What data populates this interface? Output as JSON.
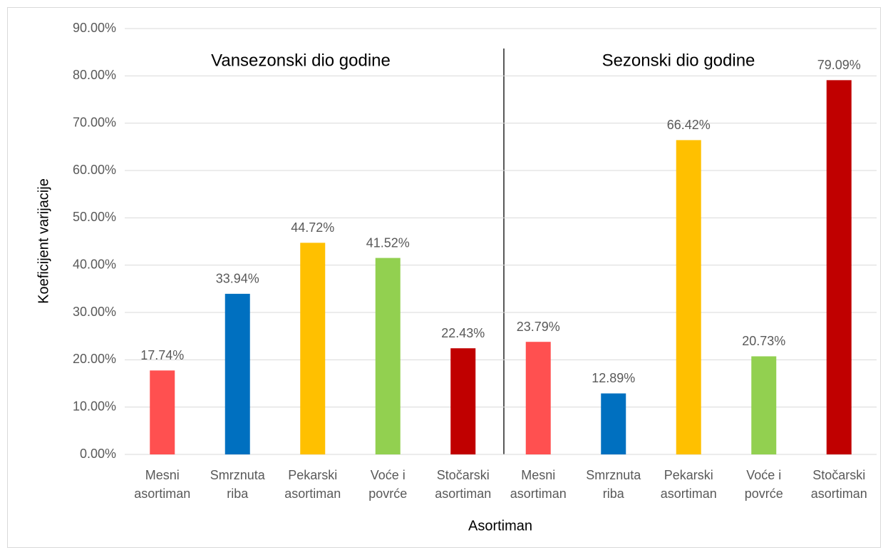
{
  "chart_data": {
    "type": "bar",
    "x_label": "Asortiman",
    "y_label": "Koeficijent varijacije",
    "annotations": [
      "Vansezonski dio godine",
      "Sezonski dio godine"
    ],
    "categories": [
      [
        "Mesni",
        "asortiman"
      ],
      [
        "Smrznuta",
        "riba"
      ],
      [
        "Pekarski",
        "asortiman"
      ],
      [
        "Voće i",
        "povrće"
      ],
      [
        "Stočarski",
        "asortiman"
      ],
      [
        "Mesni",
        "asortiman"
      ],
      [
        "Smrznuta",
        "riba"
      ],
      [
        "Pekarski",
        "asortiman"
      ],
      [
        "Voće i",
        "povrće"
      ],
      [
        "Stočarski",
        "asortiman"
      ]
    ],
    "values": [
      17.74,
      33.94,
      44.72,
      41.52,
      22.43,
      23.79,
      12.89,
      66.42,
      20.73,
      79.09
    ],
    "value_labels": [
      "17.74%",
      "33.94%",
      "44.72%",
      "41.52%",
      "22.43%",
      "23.79%",
      "12.89%",
      "66.42%",
      "20.73%",
      "79.09%"
    ],
    "colors": [
      "#ff5050",
      "#0070c0",
      "#ffc000",
      "#92d050",
      "#c00000",
      "#ff5050",
      "#0070c0",
      "#ffc000",
      "#92d050",
      "#c00000"
    ],
    "ylim": [
      0,
      90
    ],
    "yticks": [
      {
        "value": 0,
        "label": "0.00%"
      },
      {
        "value": 10,
        "label": "10.00%"
      },
      {
        "value": 20,
        "label": "20.00%"
      },
      {
        "value": 30,
        "label": "30.00%"
      },
      {
        "value": 40,
        "label": "40.00%"
      },
      {
        "value": 50,
        "label": "50.00%"
      },
      {
        "value": 60,
        "label": "60.00%"
      },
      {
        "value": 70,
        "label": "70.00%"
      },
      {
        "value": 80,
        "label": "80.00%"
      },
      {
        "value": 90,
        "label": "90.00%"
      }
    ],
    "grid": true
  }
}
